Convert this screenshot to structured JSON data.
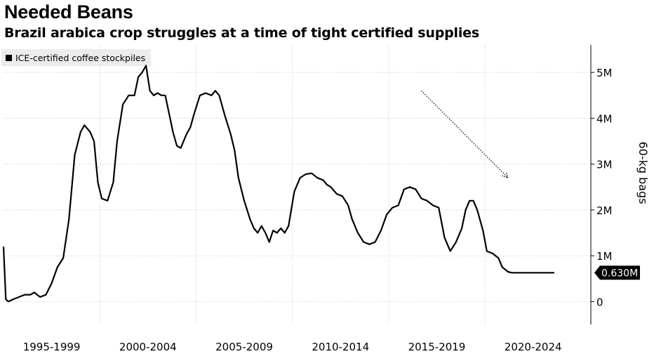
{
  "header": {
    "title": "Needed Beans",
    "subtitle": "Brazil arabica crop struggles at a time of tight certified supplies"
  },
  "legend": {
    "label": "ICE-certified coffee stockpiles",
    "color": "#000000"
  },
  "chart_data": {
    "type": "line",
    "title": "Needed Beans",
    "subtitle": "Brazil arabica crop struggles at a time of tight certified supplies",
    "ylabel": "60-kg bags",
    "xlabel": "",
    "x_tick_labels": [
      "1995-1999",
      "2000-2004",
      "2005-2009",
      "2010-2014",
      "2015-2019",
      "2020-2024"
    ],
    "y_tick_labels": [
      "0",
      "1M",
      "2M",
      "3M",
      "4M",
      "5M"
    ],
    "y_ticks": [
      0,
      1000000,
      2000000,
      3000000,
      4000000,
      5000000
    ],
    "xlim": [
      1995.0,
      2025.5
    ],
    "ylim": [
      -500000,
      5600000
    ],
    "grid": true,
    "legend_position": "top-left",
    "y_axis_side": "right",
    "last_value_label": "0.630M",
    "last_value": 630000,
    "annotation": {
      "type": "dotted-arrow",
      "from": [
        2016.7,
        4600000
      ],
      "to": [
        2021.2,
        2700000
      ]
    },
    "series": [
      {
        "name": "ICE-certified coffee stockpiles",
        "color": "#000000",
        "x": [
          1995.0,
          1995.12,
          1995.25,
          1995.5,
          1995.8,
          1996.1,
          1996.4,
          1996.6,
          1996.9,
          1997.2,
          1997.5,
          1997.8,
          1998.1,
          1998.4,
          1998.7,
          1999.0,
          1999.2,
          1999.5,
          1999.7,
          1999.9,
          2000.1,
          2000.4,
          2000.7,
          2000.9,
          2001.2,
          2001.5,
          2001.8,
          2002.0,
          2002.2,
          2002.4,
          2002.6,
          2002.8,
          2003.0,
          2003.2,
          2003.4,
          2003.6,
          2003.8,
          2004.0,
          2004.2,
          2004.35,
          2004.5,
          2004.7,
          2004.9,
          2005.2,
          2005.5,
          2005.8,
          2006.0,
          2006.2,
          2006.5,
          2006.8,
          2007.0,
          2007.2,
          2007.5,
          2007.8,
          2008.0,
          2008.2,
          2008.4,
          2008.6,
          2008.8,
          2009.0,
          2009.2,
          2009.4,
          2009.6,
          2009.8,
          2010.1,
          2010.4,
          2010.7,
          2011.0,
          2011.3,
          2011.6,
          2011.8,
          2012.0,
          2012.3,
          2012.6,
          2012.9,
          2013.1,
          2013.4,
          2013.7,
          2014.0,
          2014.3,
          2014.6,
          2014.9,
          2015.2,
          2015.5,
          2015.8,
          2016.1,
          2016.4,
          2016.7,
          2017.0,
          2017.3,
          2017.6,
          2017.9,
          2018.2,
          2018.5,
          2018.8,
          2019.0,
          2019.2,
          2019.4,
          2019.6,
          2019.9,
          2020.1,
          2020.4,
          2020.7,
          2020.9,
          2021.2,
          2021.4,
          2021.6,
          2021.8,
          2022.0,
          2022.2,
          2022.4,
          2022.6,
          2022.8,
          2023.0,
          2023.2,
          2023.4,
          2023.6
        ],
        "y": [
          1200000,
          50000,
          0,
          50000,
          100000,
          150000,
          150000,
          200000,
          100000,
          150000,
          400000,
          750000,
          950000,
          1800000,
          3200000,
          3700000,
          3850000,
          3700000,
          3500000,
          2600000,
          2250000,
          2200000,
          2600000,
          3500000,
          4300000,
          4500000,
          4500000,
          4900000,
          5000000,
          5150000,
          4600000,
          4500000,
          4550000,
          4500000,
          4500000,
          4100000,
          3700000,
          3400000,
          3350000,
          3500000,
          3650000,
          3800000,
          4100000,
          4500000,
          4550000,
          4500000,
          4600000,
          4500000,
          4050000,
          3650000,
          3300000,
          2700000,
          2200000,
          1800000,
          1600000,
          1500000,
          1650000,
          1500000,
          1300000,
          1550000,
          1500000,
          1600000,
          1500000,
          1650000,
          2400000,
          2700000,
          2780000,
          2800000,
          2700000,
          2650000,
          2550000,
          2500000,
          2350000,
          2300000,
          2100000,
          1800000,
          1500000,
          1300000,
          1250000,
          1300000,
          1550000,
          1900000,
          2050000,
          2100000,
          2450000,
          2500000,
          2450000,
          2250000,
          2200000,
          2100000,
          2050000,
          1400000,
          1100000,
          1300000,
          1600000,
          2000000,
          2200000,
          2200000,
          2000000,
          1550000,
          1100000,
          1050000,
          950000,
          750000,
          650000,
          630000,
          630000,
          630000,
          630000,
          630000,
          630000,
          630000,
          630000,
          630000,
          630000,
          630000,
          630000
        ]
      }
    ]
  }
}
